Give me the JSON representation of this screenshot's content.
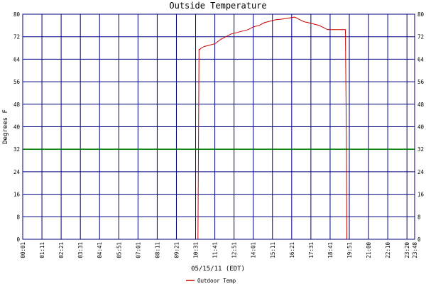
{
  "chart_data": {
    "type": "line",
    "title": "Outside Temperature",
    "xlabel": "05/15/11 (EDT)",
    "ylabel": "Degrees F",
    "ylim": [
      0,
      80
    ],
    "yticks": [
      0,
      8,
      16,
      24,
      32,
      40,
      48,
      56,
      64,
      72,
      80
    ],
    "xticks": [
      "00:01",
      "01:11",
      "02:21",
      "03:31",
      "04:41",
      "05:51",
      "07:01",
      "08:11",
      "09:21",
      "10:31",
      "11:41",
      "12:51",
      "14:01",
      "15:11",
      "16:21",
      "17:31",
      "18:41",
      "19:51",
      "21:00",
      "22:10",
      "23:20",
      "23:48"
    ],
    "grid": true,
    "legend_position": "bottom-center",
    "colors": {
      "series": "#cc0000",
      "grid": "#000080",
      "reference": "#008000",
      "background": "#ffffff"
    },
    "reference_line": {
      "y": 32
    },
    "series": [
      {
        "name": "Outdoor Temp",
        "x_minutes": [
          0,
          300,
          600,
          632,
          638,
          640,
          642,
          645,
          650,
          660,
          680,
          700,
          720,
          740,
          760,
          780,
          800,
          820,
          840,
          860,
          880,
          900,
          920,
          940,
          960,
          980,
          990,
          1000,
          1010,
          1020,
          1030,
          1040,
          1060,
          1080,
          1100,
          1110,
          1120,
          1140,
          1175,
          1178,
          1180,
          1183,
          1200,
          1300,
          1427
        ],
        "y": [
          0,
          0,
          0,
          0,
          0,
          35,
          67.5,
          67.5,
          68,
          68.5,
          69,
          69.5,
          71,
          72,
          73,
          73.5,
          74,
          74.5,
          75.5,
          76,
          77,
          77.5,
          78,
          78.2,
          78.5,
          78.8,
          79,
          78.5,
          78,
          77.5,
          77.2,
          77,
          76.5,
          76,
          75,
          74.5,
          74.5,
          74.5,
          74.5,
          40,
          0,
          0,
          0,
          0,
          0
        ]
      }
    ]
  }
}
